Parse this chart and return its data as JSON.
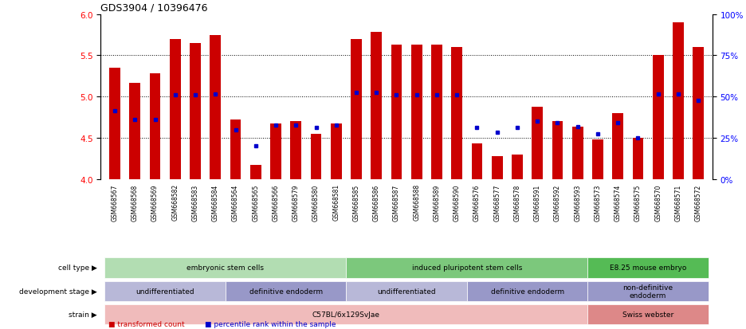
{
  "title": "GDS3904 / 10396476",
  "samples": [
    "GSM668567",
    "GSM668568",
    "GSM668569",
    "GSM668582",
    "GSM668583",
    "GSM668584",
    "GSM668564",
    "GSM668565",
    "GSM668566",
    "GSM668579",
    "GSM668580",
    "GSM668581",
    "GSM668585",
    "GSM668586",
    "GSM668587",
    "GSM668588",
    "GSM668589",
    "GSM668590",
    "GSM668576",
    "GSM668577",
    "GSM668578",
    "GSM668591",
    "GSM668592",
    "GSM668593",
    "GSM668573",
    "GSM668574",
    "GSM668575",
    "GSM668570",
    "GSM668571",
    "GSM668572"
  ],
  "bar_values": [
    5.35,
    5.17,
    5.28,
    5.7,
    5.65,
    5.75,
    4.72,
    4.17,
    4.67,
    4.7,
    4.55,
    4.67,
    5.7,
    5.78,
    5.63,
    5.63,
    5.63,
    5.6,
    4.43,
    4.28,
    4.3,
    4.88,
    4.7,
    4.63,
    4.48,
    4.8,
    4.5,
    5.5,
    5.9,
    5.6
  ],
  "dot_values": [
    4.83,
    4.72,
    4.72,
    5.02,
    5.02,
    5.03,
    4.6,
    4.4,
    4.65,
    4.65,
    4.62,
    4.65,
    5.05,
    5.05,
    5.02,
    5.02,
    5.02,
    5.02,
    4.62,
    4.57,
    4.62,
    4.7,
    4.68,
    4.63,
    4.55,
    4.68,
    4.5,
    5.03,
    5.03,
    4.95
  ],
  "ylim_left": [
    4.0,
    6.0
  ],
  "ylim_right": [
    0,
    100
  ],
  "yticks_left": [
    4.0,
    4.5,
    5.0,
    5.5,
    6.0
  ],
  "yticks_right": [
    0,
    25,
    50,
    75,
    100
  ],
  "ytick_labels_right": [
    "0%",
    "25%",
    "50%",
    "75%",
    "100%"
  ],
  "bar_color": "#cc0000",
  "dot_color": "#0000cc",
  "bar_bottom": 4.0,
  "cell_type_groups": [
    {
      "label": "embryonic stem cells",
      "start": 0,
      "end": 12,
      "color": "#b2ddb2"
    },
    {
      "label": "induced pluripotent stem cells",
      "start": 12,
      "end": 24,
      "color": "#7cc87c"
    },
    {
      "label": "E8.25 mouse embryo",
      "start": 24,
      "end": 30,
      "color": "#55bb55"
    }
  ],
  "dev_stage_groups": [
    {
      "label": "undifferentiated",
      "start": 0,
      "end": 6,
      "color": "#b8b8d8"
    },
    {
      "label": "definitive endoderm",
      "start": 6,
      "end": 12,
      "color": "#9898c8"
    },
    {
      "label": "undifferentiated",
      "start": 12,
      "end": 18,
      "color": "#b8b8d8"
    },
    {
      "label": "definitive endoderm",
      "start": 18,
      "end": 24,
      "color": "#9898c8"
    },
    {
      "label": "non-definitive\nendoderm",
      "start": 24,
      "end": 30,
      "color": "#9898c8"
    }
  ],
  "strain_groups": [
    {
      "label": "C57BL/6x129SvJae",
      "start": 0,
      "end": 24,
      "color": "#f0bbbb"
    },
    {
      "label": "Swiss webster",
      "start": 24,
      "end": 30,
      "color": "#dd8888"
    }
  ],
  "row_labels": [
    "cell type",
    "development stage",
    "strain"
  ]
}
